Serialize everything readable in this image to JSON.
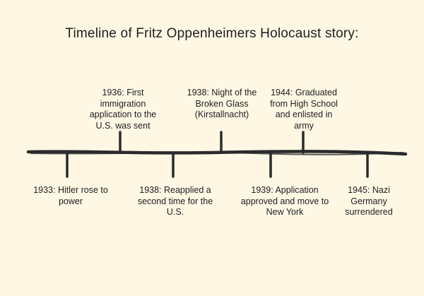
{
  "title": "Timeline of Fritz Oppenheimers Holocaust story:",
  "colors": {
    "background": "#fdf7e4",
    "line": "#2a2a2a",
    "text": "#1e1e1e"
  },
  "events": {
    "e1933": "1933: Hitler rose to power",
    "e1936": "1936: First immigration application to the U.S. was sent",
    "e1938a": "1938: Night of the Broken Glass (Kirstallnacht)",
    "e1938b": "1938: Reapplied a second time for the U.S.",
    "e1939": "1939: Application approved and move to New York",
    "e1944": "1944: Graduated from High School and enlisted in army",
    "e1945": "1945: Nazi Germany surrendered"
  }
}
